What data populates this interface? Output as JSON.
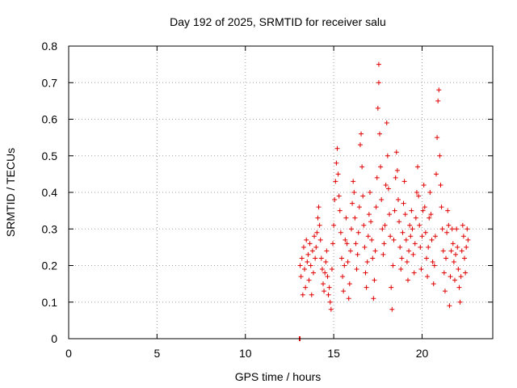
{
  "chart_data": {
    "type": "scatter",
    "title": "Day 192 of 2025, SRMTID for receiver salu",
    "xlabel": "GPS time / hours",
    "ylabel": "SRMTID / TECUs",
    "xlim": [
      0,
      24
    ],
    "ylim": [
      0,
      0.8
    ],
    "xticks": [
      0,
      5,
      10,
      15,
      20
    ],
    "xtick_labels": [
      "0",
      "5",
      "10",
      "15",
      "20"
    ],
    "yticks": [
      0,
      0.1,
      0.2,
      0.3,
      0.4,
      0.5,
      0.6,
      0.7,
      0.8
    ],
    "ytick_labels": [
      "0",
      "0.1",
      "0.2",
      "0.3",
      "0.4",
      "0.5",
      "0.6",
      "0.7",
      "0.8"
    ],
    "grid": true,
    "marker": "plus",
    "color": "#e00000",
    "series": [
      {
        "name": "SRMTID",
        "points": [
          [
            13.05,
            0.0
          ],
          [
            13.1,
            0.0
          ],
          [
            13.1,
            0.2
          ],
          [
            13.15,
            0.17
          ],
          [
            13.2,
            0.22
          ],
          [
            13.25,
            0.12
          ],
          [
            13.3,
            0.25
          ],
          [
            13.35,
            0.19
          ],
          [
            13.4,
            0.14
          ],
          [
            13.45,
            0.27
          ],
          [
            13.5,
            0.21
          ],
          [
            13.55,
            0.23
          ],
          [
            13.6,
            0.16
          ],
          [
            13.65,
            0.26
          ],
          [
            13.7,
            0.2
          ],
          [
            13.75,
            0.12
          ],
          [
            13.8,
            0.24
          ],
          [
            13.85,
            0.18
          ],
          [
            13.9,
            0.28
          ],
          [
            13.95,
            0.22
          ],
          [
            14.0,
            0.25
          ],
          [
            14.05,
            0.29
          ],
          [
            14.1,
            0.33
          ],
          [
            14.15,
            0.36
          ],
          [
            14.2,
            0.31
          ],
          [
            14.25,
            0.27
          ],
          [
            14.3,
            0.22
          ],
          [
            14.35,
            0.19
          ],
          [
            14.4,
            0.15
          ],
          [
            14.45,
            0.13
          ],
          [
            14.5,
            0.18
          ],
          [
            14.55,
            0.21
          ],
          [
            14.6,
            0.24
          ],
          [
            14.65,
            0.17
          ],
          [
            14.7,
            0.12
          ],
          [
            14.75,
            0.14
          ],
          [
            14.8,
            0.1
          ],
          [
            14.85,
            0.08
          ],
          [
            14.9,
            0.19
          ],
          [
            14.95,
            0.26
          ],
          [
            15.0,
            0.31
          ],
          [
            15.05,
            0.38
          ],
          [
            15.1,
            0.43
          ],
          [
            15.15,
            0.48
          ],
          [
            15.2,
            0.52
          ],
          [
            15.25,
            0.45
          ],
          [
            15.3,
            0.39
          ],
          [
            15.35,
            0.35
          ],
          [
            15.4,
            0.29
          ],
          [
            15.45,
            0.22
          ],
          [
            15.5,
            0.17
          ],
          [
            15.55,
            0.13
          ],
          [
            15.6,
            0.2
          ],
          [
            15.65,
            0.27
          ],
          [
            15.7,
            0.33
          ],
          [
            15.75,
            0.26
          ],
          [
            15.8,
            0.21
          ],
          [
            15.85,
            0.11
          ],
          [
            15.9,
            0.15
          ],
          [
            15.95,
            0.24
          ],
          [
            16.0,
            0.3
          ],
          [
            16.05,
            0.37
          ],
          [
            16.1,
            0.43
          ],
          [
            16.15,
            0.4
          ],
          [
            16.2,
            0.33
          ],
          [
            16.25,
            0.26
          ],
          [
            16.3,
            0.19
          ],
          [
            16.35,
            0.23
          ],
          [
            16.4,
            0.29
          ],
          [
            16.45,
            0.36
          ],
          [
            16.5,
            0.53
          ],
          [
            16.55,
            0.56
          ],
          [
            16.6,
            0.47
          ],
          [
            16.65,
            0.39
          ],
          [
            16.7,
            0.31
          ],
          [
            16.75,
            0.25
          ],
          [
            16.8,
            0.18
          ],
          [
            16.85,
            0.14
          ],
          [
            16.9,
            0.21
          ],
          [
            16.95,
            0.28
          ],
          [
            17.0,
            0.34
          ],
          [
            17.05,
            0.4
          ],
          [
            17.1,
            0.32
          ],
          [
            17.15,
            0.27
          ],
          [
            17.2,
            0.22
          ],
          [
            17.25,
            0.11
          ],
          [
            17.3,
            0.16
          ],
          [
            17.35,
            0.24
          ],
          [
            17.4,
            0.36
          ],
          [
            17.45,
            0.44
          ],
          [
            17.5,
            0.63
          ],
          [
            17.55,
            0.7
          ],
          [
            17.55,
            0.75
          ],
          [
            17.6,
            0.56
          ],
          [
            17.65,
            0.47
          ],
          [
            17.7,
            0.38
          ],
          [
            17.75,
            0.3
          ],
          [
            17.8,
            0.23
          ],
          [
            17.85,
            0.26
          ],
          [
            17.9,
            0.31
          ],
          [
            17.95,
            0.42
          ],
          [
            18.0,
            0.59
          ],
          [
            18.05,
            0.5
          ],
          [
            18.1,
            0.41
          ],
          [
            18.15,
            0.34
          ],
          [
            18.2,
            0.28
          ],
          [
            18.25,
            0.14
          ],
          [
            18.3,
            0.08
          ],
          [
            18.35,
            0.2
          ],
          [
            18.4,
            0.27
          ],
          [
            18.45,
            0.35
          ],
          [
            18.5,
            0.44
          ],
          [
            18.55,
            0.51
          ],
          [
            18.6,
            0.46
          ],
          [
            18.65,
            0.38
          ],
          [
            18.7,
            0.32
          ],
          [
            18.75,
            0.25
          ],
          [
            18.8,
            0.19
          ],
          [
            18.85,
            0.22
          ],
          [
            18.9,
            0.29
          ],
          [
            18.95,
            0.37
          ],
          [
            19.0,
            0.43
          ],
          [
            19.05,
            0.34
          ],
          [
            19.1,
            0.27
          ],
          [
            19.15,
            0.21
          ],
          [
            19.2,
            0.16
          ],
          [
            19.25,
            0.24
          ],
          [
            19.3,
            0.31
          ],
          [
            19.35,
            0.28
          ],
          [
            19.4,
            0.35
          ],
          [
            19.45,
            0.3
          ],
          [
            19.5,
            0.23
          ],
          [
            19.55,
            0.18
          ],
          [
            19.6,
            0.26
          ],
          [
            19.65,
            0.33
          ],
          [
            19.7,
            0.4
          ],
          [
            19.75,
            0.47
          ],
          [
            19.8,
            0.39
          ],
          [
            19.85,
            0.31
          ],
          [
            19.9,
            0.25
          ],
          [
            19.95,
            0.19
          ],
          [
            20.0,
            0.28
          ],
          [
            20.05,
            0.35
          ],
          [
            20.1,
            0.42
          ],
          [
            20.15,
            0.36
          ],
          [
            20.2,
            0.29
          ],
          [
            20.25,
            0.22
          ],
          [
            20.3,
            0.17
          ],
          [
            20.35,
            0.25
          ],
          [
            20.4,
            0.33
          ],
          [
            20.45,
            0.4
          ],
          [
            20.5,
            0.34
          ],
          [
            20.55,
            0.27
          ],
          [
            20.6,
            0.21
          ],
          [
            20.65,
            0.15
          ],
          [
            20.7,
            0.2
          ],
          [
            20.75,
            0.28
          ],
          [
            20.8,
            0.45
          ],
          [
            20.85,
            0.55
          ],
          [
            20.9,
            0.65
          ],
          [
            20.95,
            0.68
          ],
          [
            21.0,
            0.5
          ],
          [
            21.05,
            0.42
          ],
          [
            21.1,
            0.36
          ],
          [
            21.15,
            0.3
          ],
          [
            21.2,
            0.24
          ],
          [
            21.25,
            0.18
          ],
          [
            21.3,
            0.13
          ],
          [
            21.35,
            0.22
          ],
          [
            21.4,
            0.29
          ],
          [
            21.45,
            0.35
          ],
          [
            21.5,
            0.31
          ],
          [
            21.55,
            0.09
          ],
          [
            21.6,
            0.17
          ],
          [
            21.65,
            0.24
          ],
          [
            21.7,
            0.3
          ],
          [
            21.75,
            0.26
          ],
          [
            21.8,
            0.21
          ],
          [
            21.85,
            0.16
          ],
          [
            21.9,
            0.23
          ],
          [
            21.95,
            0.3
          ],
          [
            22.0,
            0.25
          ],
          [
            22.05,
            0.19
          ],
          [
            22.1,
            0.14
          ],
          [
            22.15,
            0.1
          ],
          [
            22.2,
            0.17
          ],
          [
            22.25,
            0.24
          ],
          [
            22.3,
            0.31
          ],
          [
            22.35,
            0.28
          ],
          [
            22.4,
            0.22
          ],
          [
            22.45,
            0.18
          ],
          [
            22.5,
            0.25
          ],
          [
            22.55,
            0.3
          ],
          [
            22.6,
            0.27
          ]
        ]
      }
    ]
  }
}
